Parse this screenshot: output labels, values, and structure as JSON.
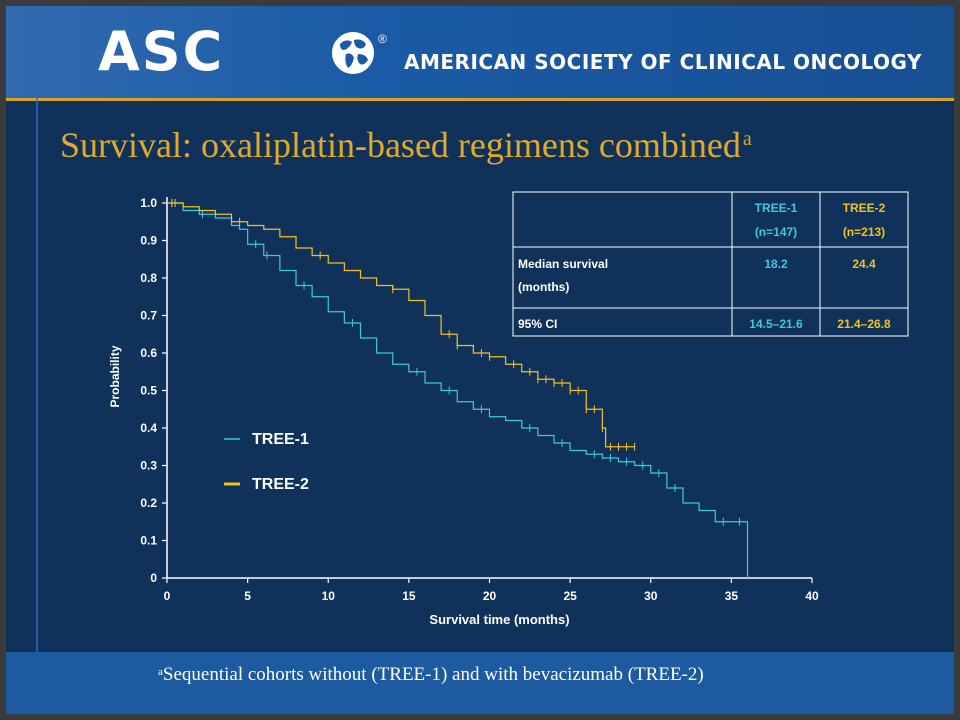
{
  "banner": {
    "logo_text": "ASC",
    "registered_mark": "®",
    "org_name": "AMERICAN SOCIETY OF CLINICAL ONCOLOGY",
    "globe_icon": "globe-icon"
  },
  "slide": {
    "title": "Survival: oxaliplatin-based regimens combined",
    "title_superscript": "a",
    "footnote_marker": "a",
    "footnote": "Sequential cohorts without (TREE-1) and with bevacizumab (TREE-2)"
  },
  "colors": {
    "background": "#10325a",
    "banner": "#1a5aa6",
    "title": "#e2a92a",
    "tree1": "#3fc8dc",
    "tree2": "#f2c21a",
    "text": "#ffffff"
  },
  "chart_data": {
    "type": "line",
    "subtype": "kaplan-meier",
    "xlabel": "Survival time (months)",
    "ylabel": "Probability",
    "xlim": [
      0,
      40
    ],
    "ylim": [
      0,
      1
    ],
    "xticks": [
      "0",
      "5",
      "10",
      "15",
      "20",
      "25",
      "30",
      "35",
      "40"
    ],
    "yticks": [
      "0",
      "0.1",
      "0.2",
      "0.3",
      "0.4",
      "0.5",
      "0.6",
      "0.7",
      "0.8",
      "0.9",
      "1.0"
    ],
    "grid": false,
    "legend": {
      "position": "left-center",
      "entries": [
        "TREE-1",
        "TREE-2"
      ]
    },
    "series": [
      {
        "name": "TREE-1",
        "color": "#3fc8dc",
        "x": [
          0,
          1,
          2,
          3,
          4,
          4.5,
          5,
          6,
          7,
          8,
          9,
          10,
          11,
          12,
          13,
          14,
          15,
          16,
          17,
          18,
          19,
          20,
          21,
          22,
          23,
          24,
          25,
          26,
          27,
          28,
          29,
          30,
          31,
          32,
          33,
          34,
          35,
          36,
          36
        ],
        "y": [
          1.0,
          0.98,
          0.97,
          0.96,
          0.94,
          0.93,
          0.89,
          0.86,
          0.82,
          0.78,
          0.75,
          0.71,
          0.68,
          0.64,
          0.6,
          0.57,
          0.55,
          0.52,
          0.5,
          0.47,
          0.45,
          0.43,
          0.42,
          0.4,
          0.38,
          0.36,
          0.34,
          0.33,
          0.32,
          0.31,
          0.3,
          0.28,
          0.24,
          0.2,
          0.18,
          0.15,
          0.15,
          0.15,
          0.0
        ],
        "censored_x": [
          0.3,
          0.5,
          2.2,
          5.5,
          6.2,
          8.5,
          11.5,
          15.5,
          17.5,
          19.5,
          22.5,
          24.5,
          26.5,
          27.5,
          28.5,
          29.5,
          30.5,
          31.5,
          34.5,
          35.5
        ]
      },
      {
        "name": "TREE-2",
        "color": "#f2c21a",
        "x": [
          0,
          1,
          2,
          3,
          4,
          5,
          6,
          7,
          8,
          9,
          10,
          11,
          12,
          13,
          14,
          15,
          16,
          17,
          18,
          19,
          20,
          21,
          22,
          23,
          24,
          25,
          26,
          27,
          27.2,
          28,
          29
        ],
        "y": [
          1.0,
          0.99,
          0.98,
          0.97,
          0.95,
          0.94,
          0.93,
          0.91,
          0.88,
          0.86,
          0.84,
          0.82,
          0.8,
          0.78,
          0.77,
          0.74,
          0.7,
          0.65,
          0.62,
          0.6,
          0.59,
          0.57,
          0.55,
          0.53,
          0.52,
          0.5,
          0.45,
          0.4,
          0.35,
          0.35,
          0.35
        ],
        "censored_x": [
          0.3,
          0.5,
          4.5,
          9.5,
          14,
          17.5,
          18,
          19.5,
          20,
          21.5,
          22.5,
          23,
          23.5,
          24,
          24.5,
          25,
          25.5,
          26,
          26.5,
          27,
          27.5,
          28,
          28.5,
          29
        ]
      }
    ],
    "table": {
      "headers": [
        "",
        "TREE-1\n(n=147)",
        "TREE-2\n(n=213)"
      ],
      "header_line1": [
        "TREE-1",
        "TREE-2"
      ],
      "header_line2": [
        "(n=147)",
        "(n=213)"
      ],
      "rows": [
        {
          "label_line1": "Median survival",
          "label_line2": "(months)",
          "tree1": "18.2",
          "tree2": "24.4"
        },
        {
          "label_line1": "95% CI",
          "label_line2": "",
          "tree1": "14.5–21.6",
          "tree2": "21.4–26.8"
        }
      ]
    }
  }
}
